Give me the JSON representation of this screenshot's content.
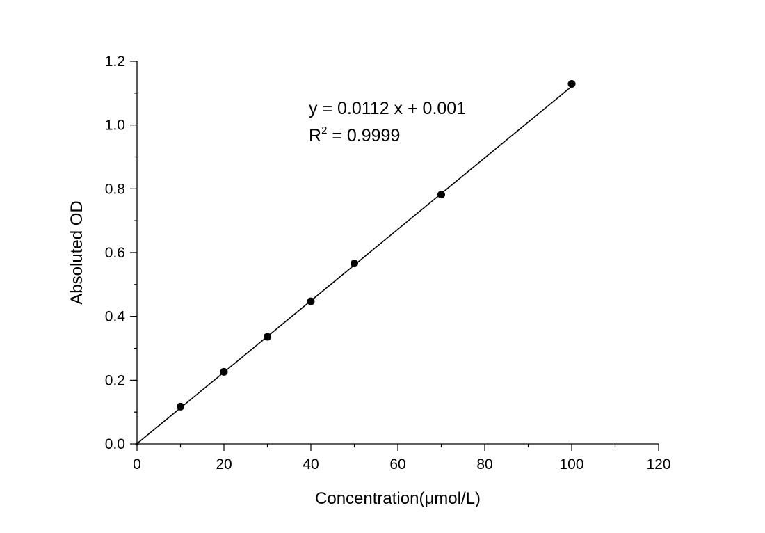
{
  "chart_data": {
    "type": "scatter",
    "xlabel": "Concentration(μmol/L)",
    "ylabel": "Absoluted OD",
    "xlim": [
      0,
      120
    ],
    "ylim": [
      0,
      1.2
    ],
    "x_ticks": [
      "0",
      "20",
      "40",
      "60",
      "80",
      "100",
      "120"
    ],
    "y_ticks": [
      "0.0",
      "0.2",
      "0.4",
      "0.6",
      "0.8",
      "1.0",
      "1.2"
    ],
    "grid": false,
    "legend": "none",
    "series": [
      {
        "x": [
          0,
          10,
          20,
          30,
          40,
          50,
          70,
          100
        ],
        "y": [
          0,
          0.117,
          0.226,
          0.336,
          0.447,
          0.566,
          0.782,
          1.129
        ],
        "marker": "circle",
        "color": "#000000"
      }
    ],
    "fit": {
      "slope": 0.0112,
      "intercept": 0.001,
      "x_range": [
        0,
        100
      ],
      "color": "#000000"
    },
    "annotations": {
      "equation": "y = 0.0112 x + 0.001",
      "r2_prefix": "R",
      "r2_sup": "2",
      "r2_value": " = 0.9999"
    }
  }
}
